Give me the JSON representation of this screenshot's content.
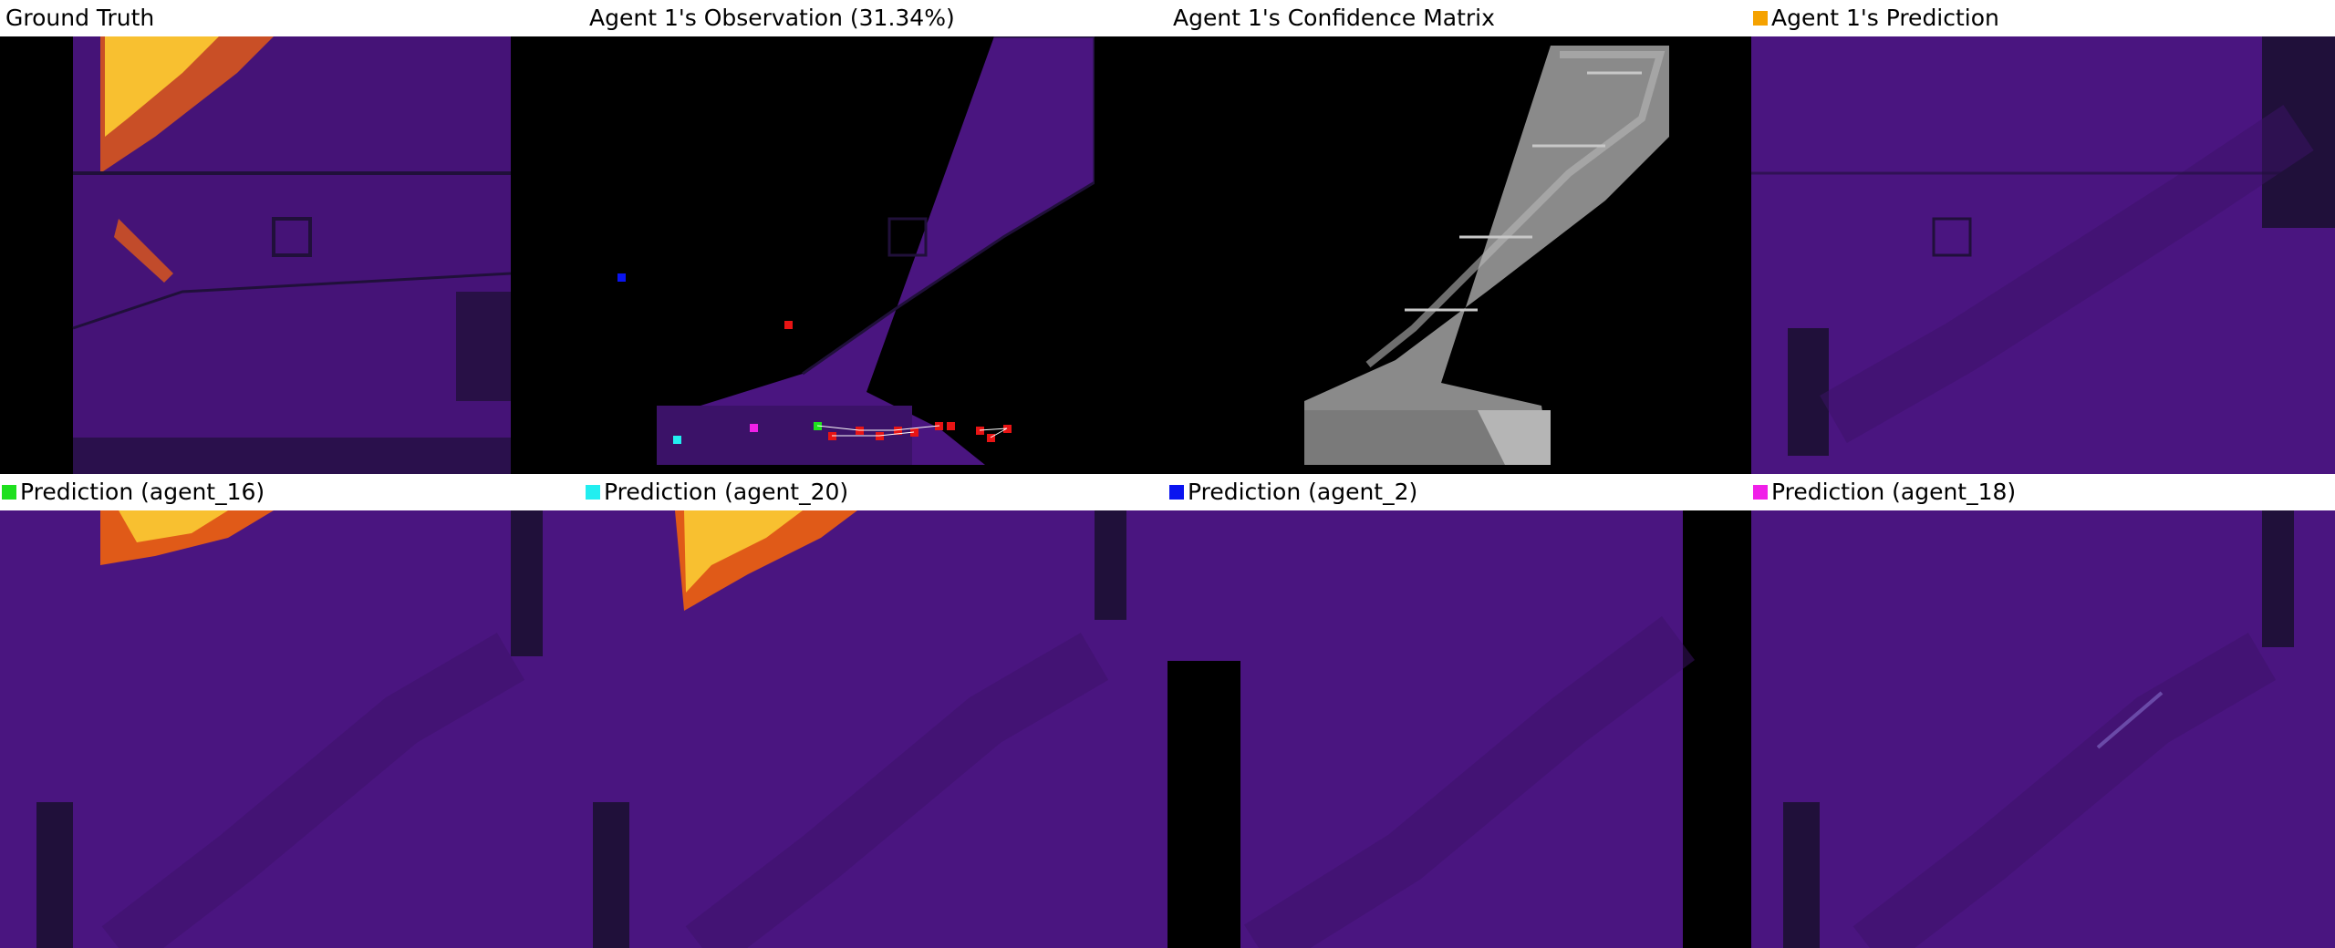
{
  "panels": {
    "ground_truth": {
      "title": "Ground Truth"
    },
    "observation": {
      "title": "Agent 1's Observation (31.34%)"
    },
    "confidence": {
      "title": "Agent 1's Confidence Matrix"
    },
    "prediction": {
      "title": "Agent 1's Prediction",
      "swatch_color": "#f5a200"
    },
    "agent_16": {
      "title": "Prediction (agent_16)",
      "swatch_color": "#1ee01e"
    },
    "agent_20": {
      "title": "Prediction (agent_20)",
      "swatch_color": "#22eef0"
    },
    "agent_2": {
      "title": "Prediction (agent_2)",
      "swatch_color": "#0a14f0"
    },
    "agent_18": {
      "title": "Prediction (agent_18)",
      "swatch_color": "#f020e8"
    }
  },
  "colors": {
    "heat_background": "#4a1580",
    "heat_dark": "#20103a",
    "heat_hot": "#f8c030",
    "heat_mid": "#e05a18",
    "agent_marker": "#e81414",
    "confidence_gray": "#8a8a8a"
  }
}
